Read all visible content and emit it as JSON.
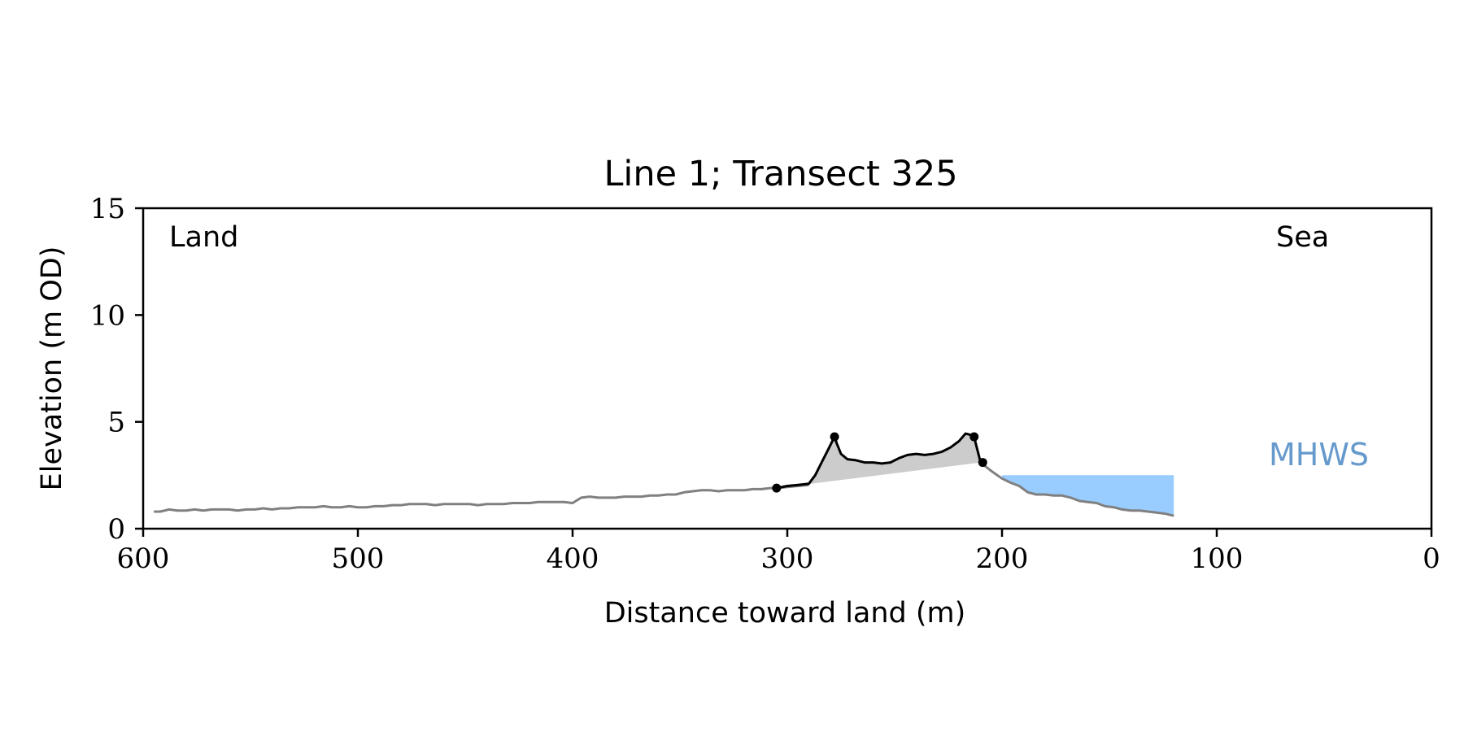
{
  "chart_data": {
    "type": "line",
    "title": "Line 1; Transect 325",
    "xlabel": "Distance toward land (m)",
    "ylabel": "Elevation (m OD)",
    "xlim": [
      600,
      0
    ],
    "ylim": [
      0,
      15
    ],
    "x_ticks": [
      600,
      500,
      400,
      300,
      200,
      100,
      0
    ],
    "y_ticks": [
      0,
      5,
      10,
      15
    ],
    "grid": false,
    "annotations": {
      "land": "Land",
      "sea": "Sea",
      "mhws": "MHWS"
    },
    "colors": {
      "profile": "#808080",
      "dune": "#000000",
      "dune_fill": "#cccccc",
      "water": "#99ccff",
      "mhws_text": "#6699cc"
    },
    "mhws": {
      "elevation": 2.5,
      "x_from": 200,
      "x_to": 120
    },
    "series": [
      {
        "role": "profile",
        "x": [
          595,
          592,
          588,
          584,
          580,
          576,
          572,
          568,
          564,
          560,
          556,
          552,
          548,
          544,
          540,
          536,
          532,
          528,
          524,
          520,
          516,
          512,
          508,
          504,
          500,
          496,
          492,
          488,
          484,
          480,
          476,
          472,
          468,
          464,
          460,
          456,
          452,
          448,
          444,
          440,
          436,
          432,
          428,
          424,
          420,
          416,
          412,
          408,
          404,
          400,
          396,
          392,
          388,
          384,
          380,
          376,
          372,
          368,
          364,
          360,
          356,
          352,
          348,
          344,
          340,
          336,
          332,
          328,
          324,
          320,
          316,
          312,
          308,
          305,
          300,
          295,
          290
        ],
        "y": [
          0.8,
          0.8,
          0.9,
          0.85,
          0.85,
          0.9,
          0.85,
          0.9,
          0.9,
          0.9,
          0.85,
          0.9,
          0.9,
          0.95,
          0.9,
          0.95,
          0.95,
          1.0,
          1.0,
          1.0,
          1.05,
          1.0,
          1.0,
          1.05,
          1.0,
          1.0,
          1.05,
          1.05,
          1.1,
          1.1,
          1.15,
          1.15,
          1.15,
          1.1,
          1.15,
          1.15,
          1.15,
          1.15,
          1.1,
          1.15,
          1.15,
          1.15,
          1.2,
          1.2,
          1.2,
          1.25,
          1.25,
          1.25,
          1.25,
          1.2,
          1.45,
          1.5,
          1.45,
          1.45,
          1.45,
          1.5,
          1.5,
          1.5,
          1.55,
          1.55,
          1.6,
          1.6,
          1.7,
          1.75,
          1.8,
          1.8,
          1.75,
          1.8,
          1.8,
          1.8,
          1.85,
          1.85,
          1.9,
          1.9,
          1.95,
          2.0,
          2.05
        ]
      },
      {
        "role": "dune",
        "x": [
          305,
          300,
          295,
          290,
          287,
          284,
          281,
          279,
          278,
          277,
          275,
          272,
          268,
          264,
          260,
          256,
          252,
          248,
          244,
          240,
          236,
          232,
          228,
          224,
          220,
          217,
          215,
          213,
          212,
          211,
          210
        ],
        "y": [
          1.9,
          2.0,
          2.05,
          2.1,
          2.5,
          3.1,
          3.7,
          4.1,
          4.3,
          4.0,
          3.5,
          3.25,
          3.2,
          3.1,
          3.1,
          3.05,
          3.1,
          3.3,
          3.45,
          3.5,
          3.45,
          3.5,
          3.6,
          3.8,
          4.1,
          4.45,
          4.4,
          4.3,
          3.9,
          3.5,
          3.1
        ]
      },
      {
        "role": "beach",
        "x": [
          210,
          205,
          200,
          196,
          192,
          188,
          184,
          180,
          176,
          172,
          168,
          164,
          160,
          156,
          152,
          148,
          144,
          140,
          136,
          132,
          128,
          124,
          120
        ],
        "y": [
          3.1,
          2.7,
          2.35,
          2.15,
          2.0,
          1.7,
          1.6,
          1.6,
          1.55,
          1.55,
          1.45,
          1.3,
          1.25,
          1.2,
          1.05,
          1.0,
          0.9,
          0.85,
          0.85,
          0.8,
          0.75,
          0.7,
          0.6
        ]
      }
    ],
    "markers": [
      {
        "x": 305,
        "y": 1.9
      },
      {
        "x": 278,
        "y": 4.3
      },
      {
        "x": 213,
        "y": 4.3
      },
      {
        "x": 209,
        "y": 3.1
      }
    ]
  }
}
